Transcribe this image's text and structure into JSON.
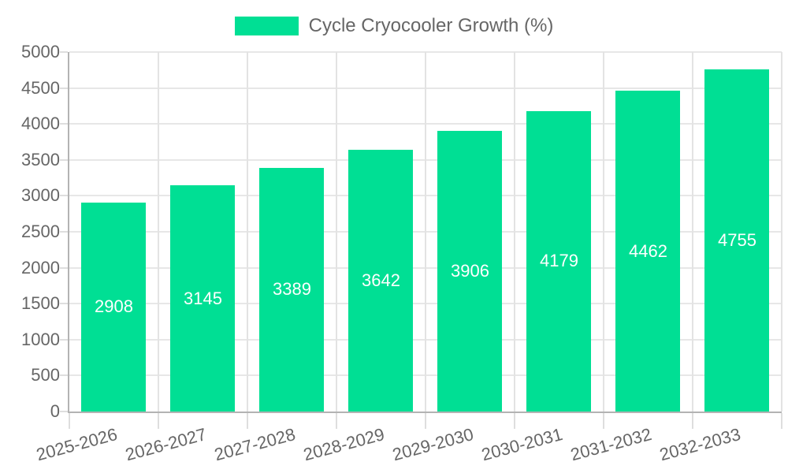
{
  "legend": {
    "label": "Cycle Cryocooler Growth (%)"
  },
  "chart_data": {
    "type": "bar",
    "title": "Cycle Cryocooler Growth (%)",
    "categories": [
      "2025-2026",
      "2026-2027",
      "2027-2028",
      "2028-2029",
      "2029-2030",
      "2030-2031",
      "2031-2032",
      "2032-2033"
    ],
    "series": [
      {
        "name": "Cycle Cryocooler Growth (%)",
        "values": [
          2908,
          3145,
          3389,
          3642,
          3906,
          4179,
          4462,
          4755
        ]
      }
    ],
    "data_labels": [
      "2908",
      "3145",
      "3389",
      "3642",
      "3906",
      "4179",
      "4462",
      "4755"
    ],
    "xlabel": "",
    "ylabel": "",
    "ylim": [
      0,
      5000
    ],
    "yticks": [
      0,
      500,
      1000,
      1500,
      2000,
      2500,
      3000,
      3500,
      4000,
      4500,
      5000
    ],
    "grid": true,
    "legend_position": "top",
    "colors": {
      "bar": "#00DF94",
      "data_label": "#ffffff",
      "axis_text": "#666666",
      "gridline": "#e3e3e3",
      "axis_line": "#b3b3b3"
    }
  }
}
